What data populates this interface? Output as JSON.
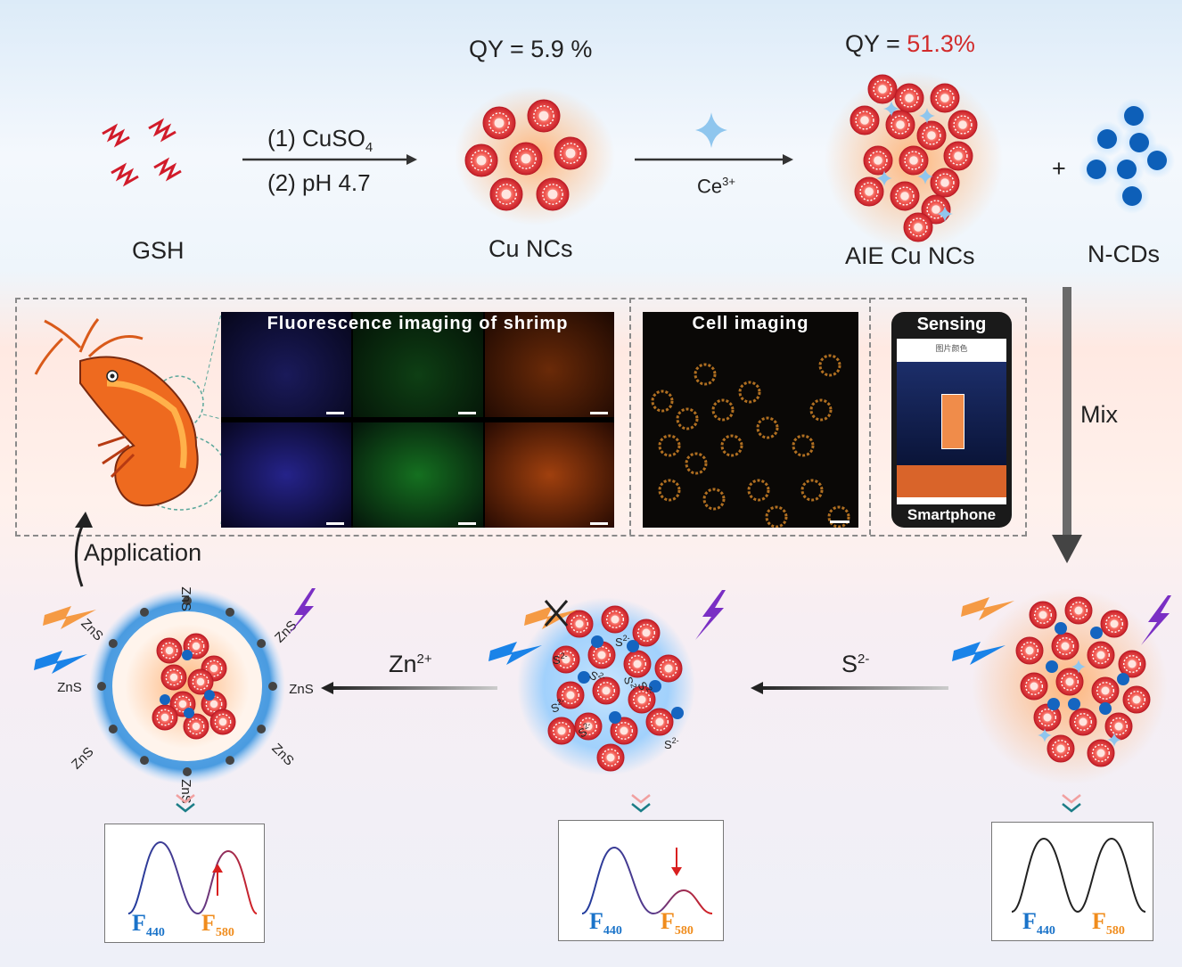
{
  "top": {
    "gsh_label": "GSH",
    "step1": "(1) CuSO",
    "step1_sub": "4",
    "step2": "(2) pH 4.7",
    "cu_qy": "QY = 5.9 %",
    "cu_label": "Cu NCs",
    "ce_label": "Ce",
    "ce_sup": "3+",
    "aie_qy_prefix": "QY = ",
    "aie_qy_value": "51.3%",
    "aie_label": "AIE Cu NCs",
    "plus": "+",
    "ncd_label": "N-CDs"
  },
  "middle": {
    "shrimp_title": "Fluorescence imaging of shrimp",
    "cell_title": "Cell imaging",
    "sensing_title": "Sensing",
    "phone_label": "Smartphone",
    "phone_header": "图片颜色",
    "mix_label": "Mix",
    "application_label": "Application"
  },
  "bottom": {
    "zn_label": "Zn",
    "zn_sup": "2+",
    "s_label": "S",
    "s_sup": "2-",
    "zns_label": "ZnS",
    "s2_label": "S",
    "s2_sup": "2-"
  },
  "spectra": [
    {
      "f1": "F",
      "f1_sub": "440",
      "f2": "F",
      "f2_sub": "580",
      "arrow": "up"
    },
    {
      "f1": "F",
      "f1_sub": "440",
      "f2": "F",
      "f2_sub": "580",
      "arrow": "down"
    },
    {
      "f1": "F",
      "f1_sub": "440",
      "f2": "F",
      "f2_sub": "580",
      "arrow": "none"
    }
  ],
  "colors": {
    "nc_red": "#e8413f",
    "glow_orange": "#ffb070",
    "ncd_blue": "#1565c0",
    "aie_qy_red": "#d22b2b",
    "f440_blue": "#1a73c9",
    "f580_orange": "#f08c1c"
  }
}
